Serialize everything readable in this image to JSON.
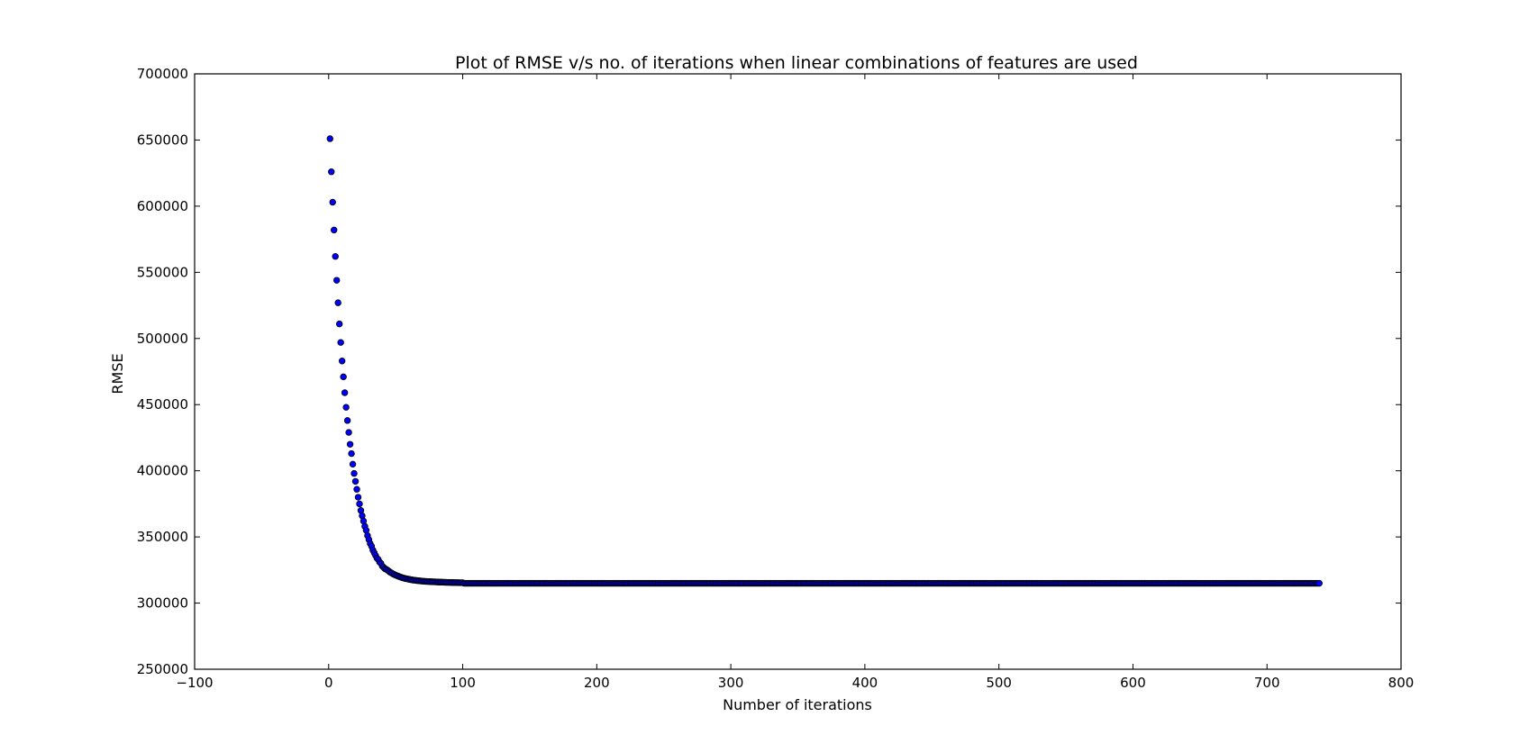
{
  "chart_data": {
    "type": "scatter",
    "title": "Plot of RMSE v/s no. of iterations when linear combinations of features are used",
    "xlabel": "Number of iterations",
    "ylabel": "RMSE",
    "xlim": [
      -100,
      800
    ],
    "ylim": [
      250000,
      700000
    ],
    "xticks": [
      -100,
      0,
      100,
      200,
      300,
      400,
      500,
      600,
      700,
      800
    ],
    "xtick_labels": [
      "−100",
      "0",
      "100",
      "200",
      "300",
      "400",
      "500",
      "600",
      "700",
      "800"
    ],
    "yticks": [
      250000,
      300000,
      350000,
      400000,
      450000,
      500000,
      550000,
      600000,
      650000,
      700000
    ],
    "ytick_labels": [
      "250000",
      "300000",
      "350000",
      "400000",
      "450000",
      "500000",
      "550000",
      "600000",
      "650000",
      "700000"
    ],
    "grid": false,
    "legend": "none",
    "marker_color": "#0000ff",
    "marker_edge_color": "#000000",
    "series": [
      {
        "x_start": 1,
        "x_end": 739,
        "x_step": 1,
        "y": [
          651000,
          626000,
          603000,
          582000,
          562000,
          544000,
          527000,
          511000,
          497000,
          483000,
          471000,
          459000,
          448000,
          438000,
          429000,
          420000,
          413000,
          405000,
          398000,
          392000,
          386000,
          380000,
          375000,
          370000,
          366000,
          362000,
          358000,
          355000,
          351000,
          348000,
          345000,
          343000,
          340000,
          338000,
          336000,
          334000,
          333000,
          331000,
          330000,
          328000,
          327000,
          326000,
          325500,
          324800,
          324000,
          323300,
          322700,
          322100,
          321600,
          321100,
          320700,
          320300,
          319900,
          319500,
          319200,
          318900,
          318600,
          318400,
          318200,
          318000,
          317800,
          317600,
          317400,
          317300,
          317200,
          317000,
          316900,
          316800,
          316700,
          316600,
          316500,
          316400,
          316350,
          316300,
          316250,
          316200,
          316150,
          316100,
          316050,
          316000,
          315950,
          315900,
          315860,
          315820,
          315780,
          315740,
          315700,
          315670,
          315640,
          315610,
          315580,
          315550,
          315520,
          315500,
          315480,
          315460,
          315440,
          315420,
          315400,
          315380
        ],
        "y_plateau": 315000
      }
    ]
  }
}
